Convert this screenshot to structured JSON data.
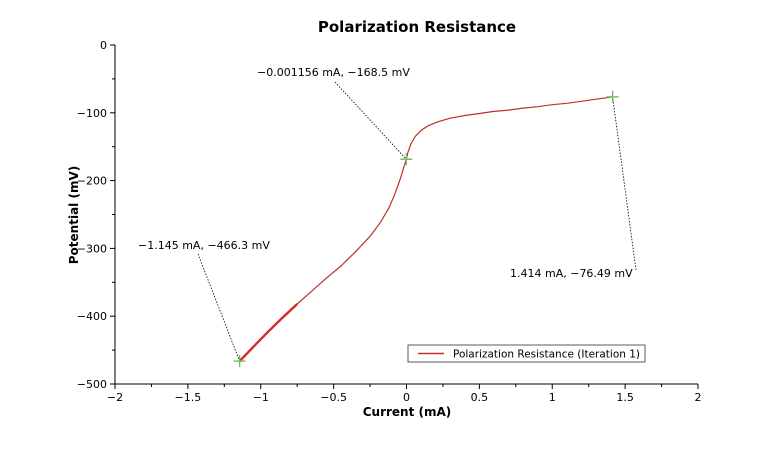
{
  "chart_data": {
    "type": "line",
    "title": "Polarization Resistance",
    "xlabel": "Current (mA)",
    "ylabel": "Potential (mV)",
    "xlim": [
      -2,
      2
    ],
    "ylim": [
      -500,
      0
    ],
    "x_ticks": [
      -2,
      -1.5,
      -1,
      -0.5,
      0,
      0.5,
      1,
      1.5,
      2
    ],
    "x_tick_labels": [
      "−2",
      "−1.5",
      "−1",
      "−0.5",
      "0",
      "0.5",
      "1",
      "1.5",
      "2"
    ],
    "y_ticks": [
      0,
      -100,
      -200,
      -300,
      -400,
      -500
    ],
    "y_tick_labels": [
      "0",
      "−100",
      "−200",
      "−300",
      "−400",
      "−500"
    ],
    "grid": false,
    "legend_position": "bottom-right",
    "series": [
      {
        "name": "Polarization Resistance (Iteration 1)",
        "color": "#c0302a",
        "x": [
          -1.145,
          -1.05,
          -0.95,
          -0.85,
          -0.75,
          -0.65,
          -0.55,
          -0.45,
          -0.35,
          -0.25,
          -0.18,
          -0.12,
          -0.08,
          -0.05,
          -0.03,
          -0.015,
          -0.001156,
          0.01,
          0.03,
          0.06,
          0.1,
          0.15,
          0.22,
          0.3,
          0.4,
          0.5,
          0.6,
          0.7,
          0.8,
          0.9,
          1.0,
          1.1,
          1.2,
          1.3,
          1.414
        ],
        "y": [
          -466.3,
          -445,
          -423,
          -402,
          -382,
          -363,
          -344,
          -326,
          -305,
          -282,
          -262,
          -240,
          -220,
          -202,
          -189,
          -178,
          -168.5,
          -158,
          -146,
          -135,
          -126,
          -119,
          -113,
          -108,
          -104,
          -101,
          -98,
          -96,
          -93,
          -91,
          -88,
          -86,
          -83,
          -80,
          -76.49
        ]
      }
    ],
    "annotations": [
      {
        "text": "−1.145 mA, −466.3 mV",
        "x": -1.145,
        "y": -466.3,
        "marker_color": "#6cbf5a"
      },
      {
        "text": "−0.001156 mA, −168.5 mV",
        "x": -0.001156,
        "y": -168.5,
        "marker_color": "#6cbf5a"
      },
      {
        "text": "1.414 mA, −76.49 mV",
        "x": 1.414,
        "y": -76.49,
        "marker_color": "#6cbf5a"
      }
    ],
    "axis_color": "#000000"
  }
}
